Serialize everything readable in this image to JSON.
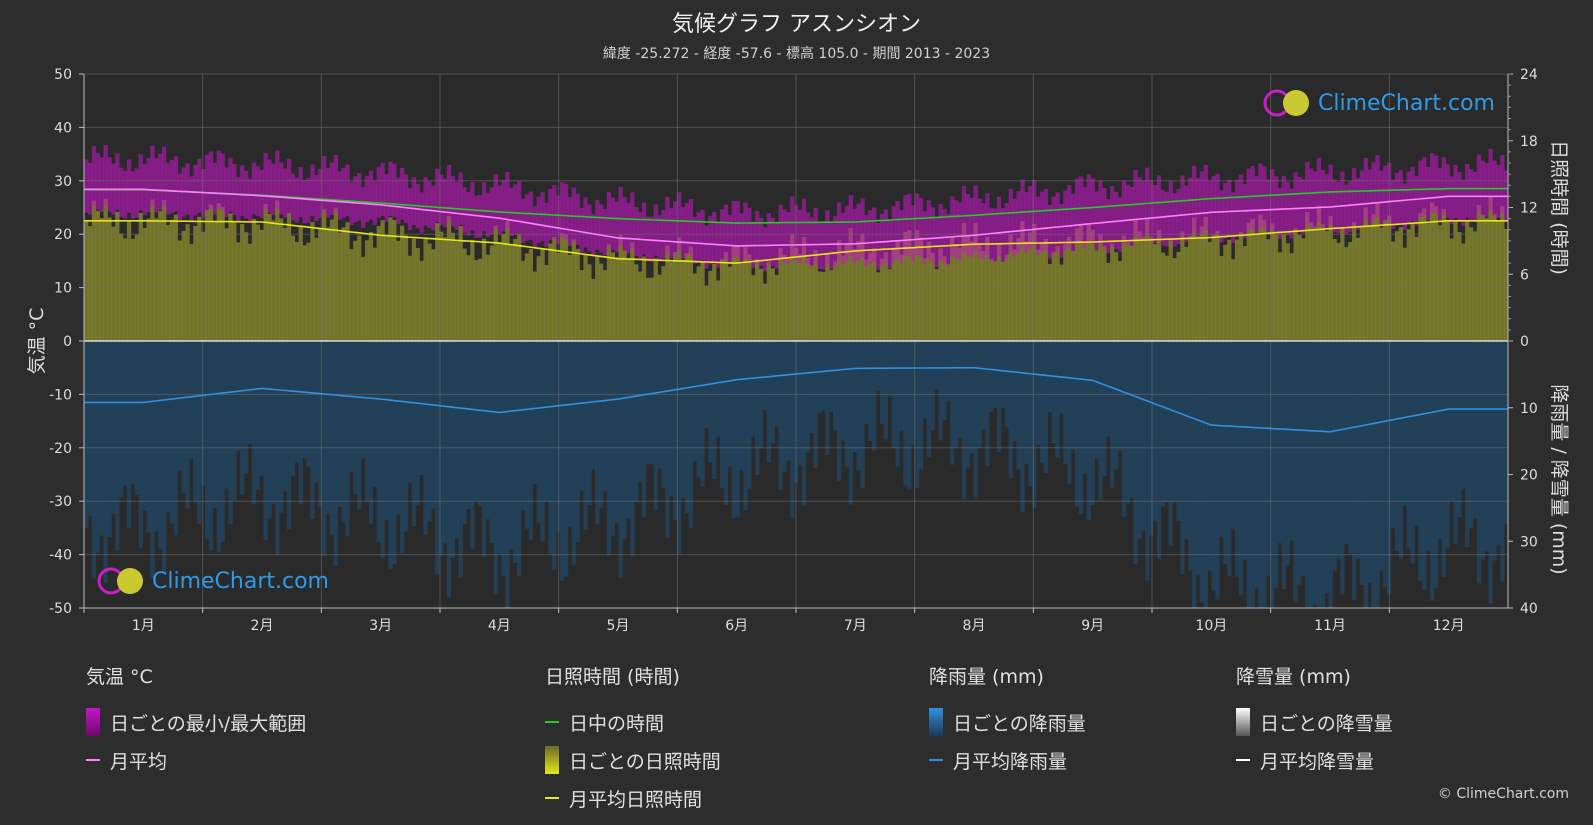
{
  "title": "気候グラフ アスンシオン",
  "subtitle": "緯度 -25.272 - 経度 -57.6 - 標高 105.0 - 期間 2013 - 2023",
  "logo_text": "ClimeChart.com",
  "copyright": "© ClimeChart.com",
  "colors": {
    "background": "#2d2d2d",
    "temp_range": "#c814c8",
    "temp_avg": "#ff7fff",
    "daylight": "#22cc22",
    "sunshine_fill": "#8c8c2e",
    "sunshine_avg": "#e6e619",
    "rain_fill": "#1e5078",
    "rain_avg": "#2f8fe0",
    "snow_avg": "#ffffff"
  },
  "legend": {
    "temp": {
      "heading": "気温 °C",
      "range": "日ごとの最小/最大範囲",
      "avg": "月平均"
    },
    "sun": {
      "heading": "日照時間 (時間)",
      "daylight": "日中の時間",
      "daily": "日ごとの日照時間",
      "avg": "月平均日照時間"
    },
    "rain": {
      "heading": "降雨量 (mm)",
      "daily": "日ごとの降雨量",
      "avg": "月平均降雨量"
    },
    "snow": {
      "heading": "降雪量 (mm)",
      "daily": "日ごとの降雪量",
      "avg": "月平均降雪量"
    }
  },
  "chart_data": {
    "type": "line",
    "categories": [
      "1月",
      "2月",
      "3月",
      "4月",
      "5月",
      "6月",
      "7月",
      "8月",
      "9月",
      "10月",
      "11月",
      "12月"
    ],
    "y_left": {
      "label": "気温 °C",
      "ticks": [
        50,
        40,
        30,
        20,
        10,
        0,
        -10,
        -20,
        -30,
        -40,
        -50
      ],
      "range": [
        -50,
        50
      ]
    },
    "y_right_top": {
      "label": "日照時間 (時間)",
      "ticks": [
        24,
        18,
        12,
        6,
        0
      ],
      "range": [
        0,
        24
      ]
    },
    "y_right_bottom": {
      "label": "降雨量 / 降雪量 (mm)",
      "ticks": [
        0,
        10,
        20,
        30,
        40
      ],
      "range": [
        0,
        40
      ]
    },
    "grid": true,
    "series": [
      {
        "name": "月平均",
        "axis": "temperature",
        "values": [
          28.4,
          27.2,
          25.5,
          23.0,
          19.3,
          17.8,
          18.2,
          19.8,
          22.0,
          24.1,
          25.1,
          27.1
        ]
      },
      {
        "name": "日ごとの最小/最大範囲",
        "axis": "temperature",
        "min": [
          24.0,
          23.5,
          22.5,
          20.0,
          16.5,
          14.5,
          14.5,
          15.5,
          17.5,
          19.5,
          21.0,
          23.0
        ],
        "max": [
          34.0,
          33.0,
          31.5,
          29.0,
          26.0,
          24.0,
          24.5,
          26.5,
          29.0,
          30.5,
          31.5,
          33.0
        ]
      },
      {
        "name": "日中の時間",
        "axis": "sunshine",
        "values": [
          13.6,
          13.1,
          12.4,
          11.6,
          11.0,
          10.6,
          10.7,
          11.3,
          12.0,
          12.8,
          13.4,
          13.7
        ]
      },
      {
        "name": "月平均日照時間",
        "axis": "sunshine",
        "values": [
          10.8,
          10.7,
          9.5,
          8.8,
          7.4,
          7.0,
          8.1,
          8.7,
          8.9,
          9.3,
          10.1,
          10.8
        ]
      },
      {
        "name": "月平均降雨量",
        "axis": "precipitation",
        "values": [
          9.2,
          7.1,
          8.7,
          10.7,
          8.7,
          5.8,
          4.1,
          4.0,
          5.9,
          12.6,
          13.6,
          10.2
        ]
      },
      {
        "name": "月平均降雪量",
        "axis": "precipitation",
        "values": [
          0,
          0,
          0,
          0,
          0,
          0,
          0,
          0,
          0,
          0,
          0,
          0
        ]
      }
    ]
  }
}
